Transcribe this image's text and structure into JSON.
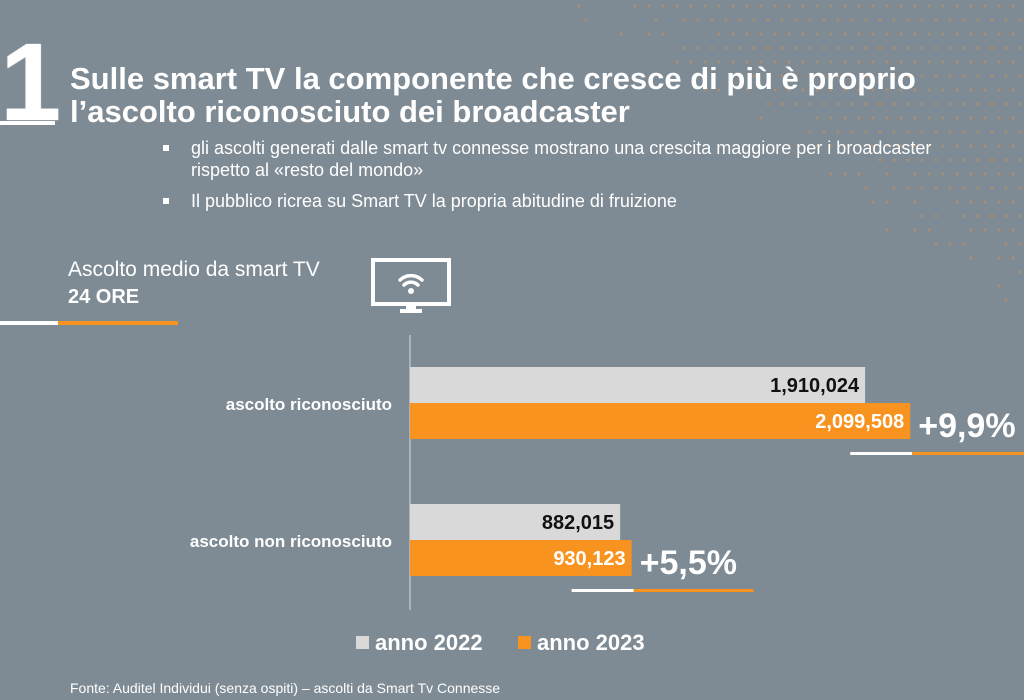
{
  "slide_number": "1",
  "title": "Sulle smart TV la componente che cresce di più è proprio l’ascolto riconosciuto dei broadcaster",
  "bullets": [
    "gli ascolti generati dalle smart tv connesse mostrano una crescita maggiore per i broadcaster rispetto al «resto del mondo»",
    "Il pubblico ricrea su Smart TV la propria abitudine di fruizione"
  ],
  "metric": {
    "label": "Ascolto medio da smart TV",
    "sub": "24 ORE"
  },
  "chart_data": {
    "type": "bar",
    "orientation": "horizontal",
    "categories": [
      "ascolto riconosciuto",
      "ascolto non riconosciuto"
    ],
    "series": [
      {
        "name": "anno 2022",
        "values": [
          1910024,
          882015
        ],
        "labels": [
          "1,910,024",
          "882,015"
        ],
        "color": "#d9d9d9"
      },
      {
        "name": "anno 2023",
        "values": [
          2099508,
          930123
        ],
        "labels": [
          "2,099,508",
          "930,123"
        ],
        "color": "#f7931e"
      }
    ],
    "growth_labels": [
      "+9,9%",
      "+5,5%"
    ],
    "xlim": [
      0,
      2300000
    ],
    "legend_position": "bottom"
  },
  "footer": "Fonte: Auditel Individui (senza ospiti) – ascolti da Smart Tv Connesse",
  "colors": {
    "background": "#7e8b94",
    "accent": "#f7931e",
    "bar_2022": "#d9d9d9",
    "dots": "#c98f5a"
  }
}
